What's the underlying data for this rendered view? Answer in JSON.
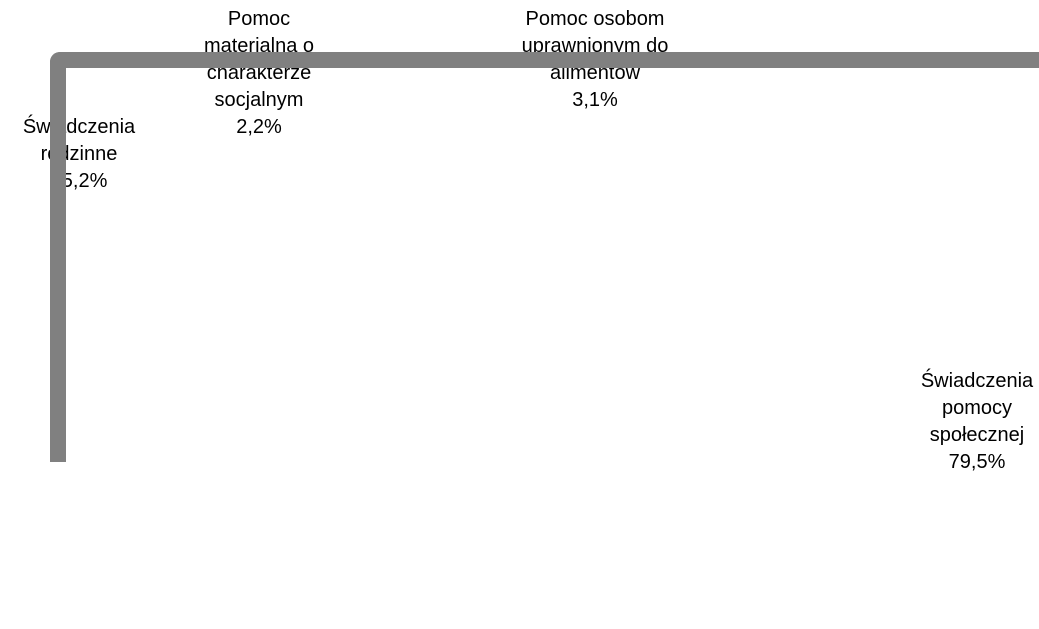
{
  "chart_data": {
    "type": "pie",
    "title": "",
    "slices": [
      {
        "label_lines": [
          "Pomoc",
          "materialna o",
          "charakterze",
          "socjalnym"
        ],
        "value_label": "2,2%",
        "value": 2.2
      },
      {
        "label_lines": [
          "Pomoc osobom",
          "uprawnionym do",
          "alimentów"
        ],
        "value_label": "3,1%",
        "value": 3.1
      },
      {
        "label_lines": [
          "Świadczenia",
          "pomocy",
          "społecznej"
        ],
        "value_label": "79,5%",
        "value": 79.5
      },
      {
        "label_lines": [
          "Świadczenia",
          "rodzinne"
        ],
        "value_label": "15,2%",
        "value": 15.2
      }
    ],
    "frame_color": "#808080",
    "legend": "none"
  }
}
